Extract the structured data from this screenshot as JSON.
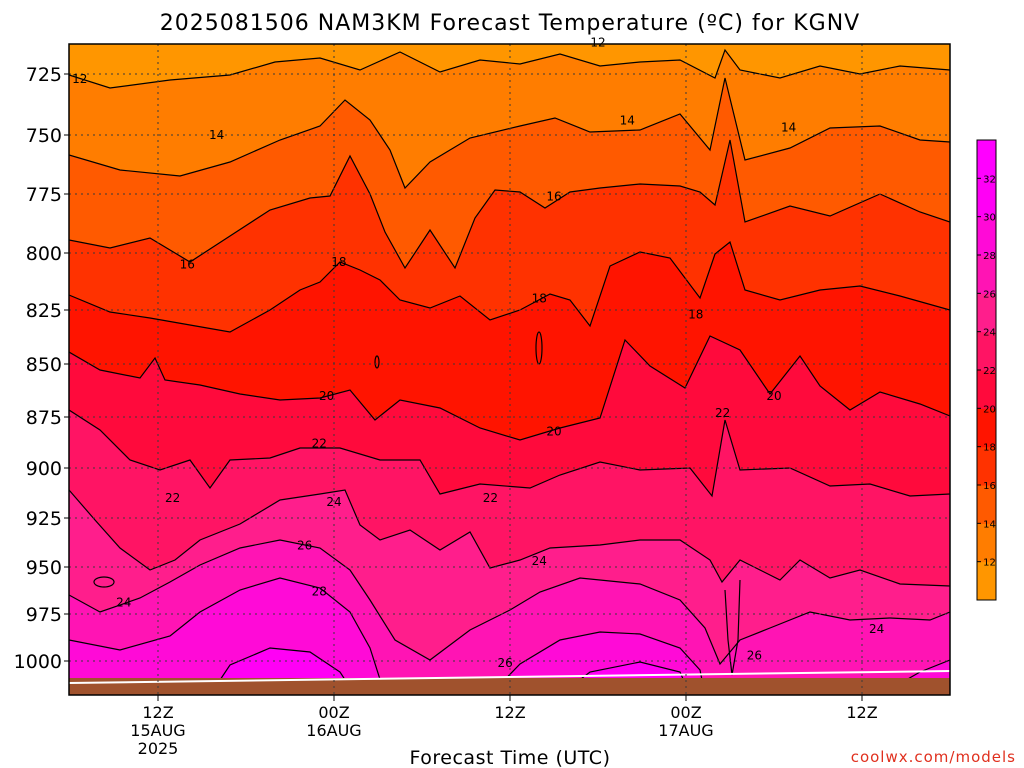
{
  "chart_data": {
    "type": "heatmap",
    "title": "2025081506 NAM3KM Forecast Temperature (ºC) for KGNV",
    "xlabel": "Forecast Time (UTC)",
    "ylabel": "",
    "credit": "coolwx.com/models",
    "y_ticks": [
      "725",
      "750",
      "775",
      "800",
      "825",
      "850",
      "875",
      "900",
      "925",
      "950",
      "975",
      "1000"
    ],
    "x_ticks": [
      {
        "line1": "12Z",
        "line2": "15AUG",
        "line3": "2025"
      },
      {
        "line1": "00Z",
        "line2": "16AUG",
        "line3": ""
      },
      {
        "line1": "12Z",
        "line2": "",
        "line3": ""
      },
      {
        "line1": "00Z",
        "line2": "17AUG",
        "line3": ""
      },
      {
        "line1": "12Z",
        "line2": "",
        "line3": ""
      }
    ],
    "colorbar": {
      "levels": [
        12,
        14,
        16,
        18,
        20,
        22,
        24,
        26,
        28,
        30,
        32
      ],
      "colors": [
        "#ff9600",
        "#ff7d00",
        "#ff5a00",
        "#ff3200",
        "#ff1400",
        "#ff0a3c",
        "#ff1464",
        "#ff1e8c",
        "#ff14b4",
        "#ff0ad7",
        "#ff00f5",
        "#ff00ff"
      ]
    },
    "contour_labels": [
      {
        "value": "12",
        "time": "2025-08-15T06:40Z",
        "level_hpa": 727
      },
      {
        "value": "12",
        "time": "2025-08-16T18:00Z",
        "level_hpa": 712
      },
      {
        "value": "14",
        "time": "2025-08-15T16:00Z",
        "level_hpa": 750
      },
      {
        "value": "14",
        "time": "2025-08-16T20:00Z",
        "level_hpa": 744
      },
      {
        "value": "14",
        "time": "2025-08-17T07:00Z",
        "level_hpa": 747
      },
      {
        "value": "16",
        "time": "2025-08-15T14:00Z",
        "level_hpa": 805
      },
      {
        "value": "16",
        "time": "2025-08-16T15:00Z",
        "level_hpa": 776
      },
      {
        "value": "18",
        "time": "2025-08-16T00:20Z",
        "level_hpa": 804
      },
      {
        "value": "18",
        "time": "2025-08-16T14:00Z",
        "level_hpa": 820
      },
      {
        "value": "18",
        "time": "2025-08-17T00:40Z",
        "level_hpa": 827
      },
      {
        "value": "20",
        "time": "2025-08-15T23:30Z",
        "level_hpa": 865
      },
      {
        "value": "20",
        "time": "2025-08-16T15:00Z",
        "level_hpa": 882
      },
      {
        "value": "20",
        "time": "2025-08-17T06:00Z",
        "level_hpa": 865
      },
      {
        "value": "22",
        "time": "2025-08-15T23:00Z",
        "level_hpa": 888
      },
      {
        "value": "22",
        "time": "2025-08-15T13:00Z",
        "level_hpa": 915
      },
      {
        "value": "22",
        "time": "2025-08-16T10:40Z",
        "level_hpa": 915
      },
      {
        "value": "22",
        "time": "2025-08-17T02:30Z",
        "level_hpa": 873
      },
      {
        "value": "24",
        "time": "2025-08-16T00:00Z",
        "level_hpa": 917
      },
      {
        "value": "24",
        "time": "2025-08-16T14:00Z",
        "level_hpa": 947
      },
      {
        "value": "24",
        "time": "2025-08-15T09:40Z",
        "level_hpa": 969
      },
      {
        "value": "24",
        "time": "2025-08-17T13:00Z",
        "level_hpa": 983
      },
      {
        "value": "26",
        "time": "2025-08-15T22:00Z",
        "level_hpa": 939
      },
      {
        "value": "26",
        "time": "2025-08-16T11:40Z",
        "level_hpa": 1001
      },
      {
        "value": "26",
        "time": "2025-08-17T04:40Z",
        "level_hpa": 997
      },
      {
        "value": "28",
        "time": "2025-08-15T23:00Z",
        "level_hpa": 963
      }
    ]
  }
}
